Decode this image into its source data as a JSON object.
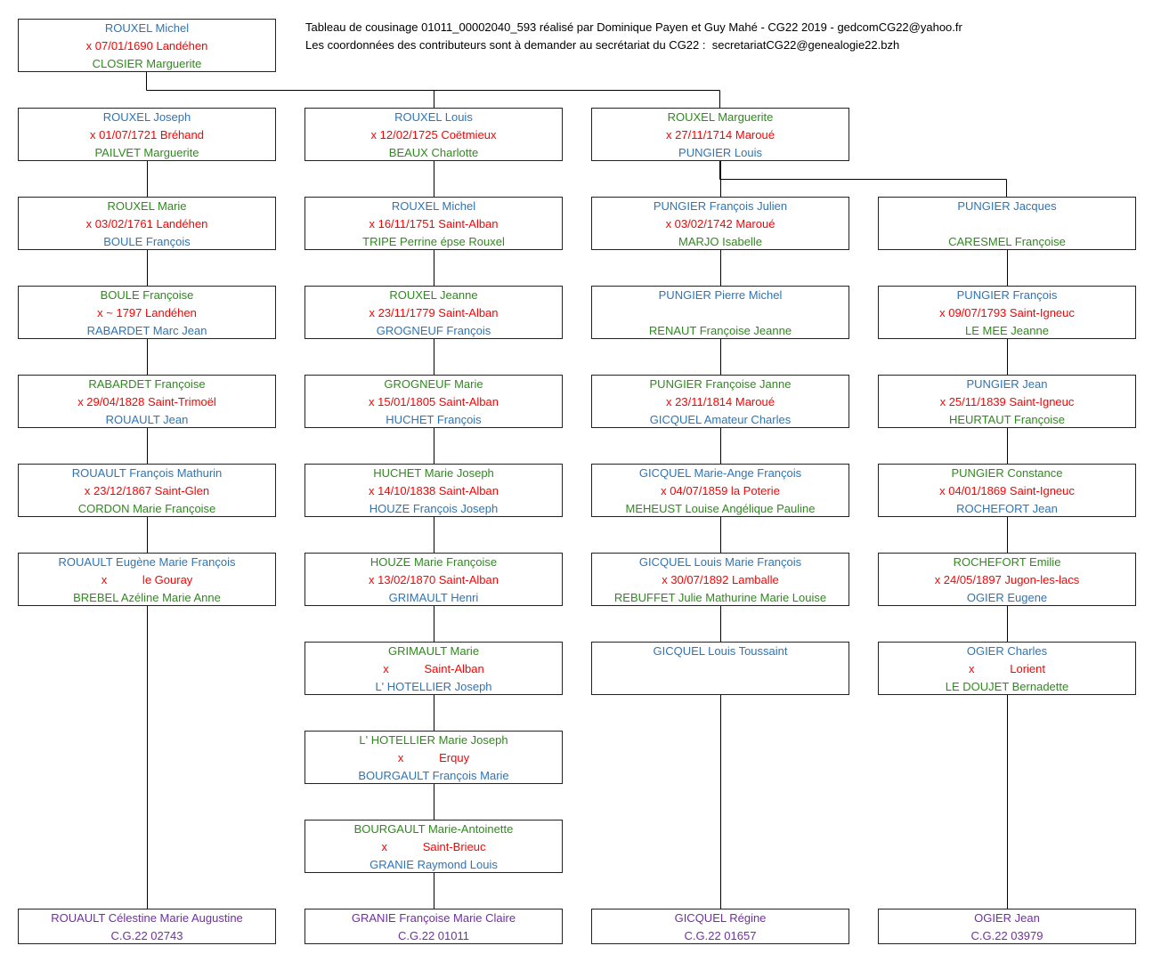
{
  "header": {
    "line1": "Tableau de cousinage 01011_00002040_593 réalisé par Dominique Payen et Guy Mahé - CG22 2019 - gedcomCG22@yahoo.fr",
    "line2": "Les coordonnées des contributeurs sont à demander au secrétariat du CG22 :  secretariatCG22@genealogie22.bzh"
  },
  "colors": {
    "blue": "#2e75b6",
    "red": "#ff0000",
    "green": "#2f8a1d",
    "purple": "#7030a0"
  },
  "ancestor": {
    "top": {
      "text": "ROUXEL Michel",
      "color": "blue"
    },
    "middle": {
      "text": "x 07/01/1690 Landéhen",
      "color": "red"
    },
    "bottom": {
      "text": "CLOSIER Marguerite",
      "color": "green"
    }
  },
  "columns": [
    {
      "boxes": [
        {
          "top": {
            "text": "ROUXEL Joseph",
            "color": "blue"
          },
          "middle": {
            "text": "x 01/07/1721 Bréhand",
            "color": "red"
          },
          "bottom": {
            "text": "PAILVET Marguerite",
            "color": "green"
          }
        },
        {
          "top": {
            "text": "ROUXEL Marie",
            "color": "green"
          },
          "middle": {
            "text": "x 03/02/1761 Landéhen",
            "color": "red"
          },
          "bottom": {
            "text": "BOULE François",
            "color": "blue"
          }
        },
        {
          "top": {
            "text": "BOULE Françoise",
            "color": "green"
          },
          "middle": {
            "text": "x ~ 1797 Landéhen",
            "color": "red"
          },
          "bottom": {
            "text": "RABARDET Marc Jean",
            "color": "blue"
          }
        },
        {
          "top": {
            "text": "RABARDET Françoise",
            "color": "green"
          },
          "middle": {
            "text": "x 29/04/1828 Saint-Trimoël",
            "color": "red"
          },
          "bottom": {
            "text": "ROUAULT Jean",
            "color": "blue"
          }
        },
        {
          "top": {
            "text": "ROUAULT François Mathurin",
            "color": "blue"
          },
          "middle": {
            "text": "x 23/12/1867 Saint-Glen",
            "color": "red"
          },
          "bottom": {
            "text": "CORDON Marie Françoise",
            "color": "green"
          }
        },
        {
          "top": {
            "text": "ROUAULT Eugène Marie François",
            "color": "blue"
          },
          "middle": {
            "text": "x           le Gouray",
            "color": "red"
          },
          "bottom": {
            "text": "BREBEL Azéline Marie Anne",
            "color": "green"
          }
        }
      ],
      "final": {
        "name": "ROUAULT Célestine Marie Augustine",
        "code": "C.G.22 02743"
      }
    },
    {
      "boxes": [
        {
          "top": {
            "text": "ROUXEL Louis",
            "color": "blue"
          },
          "middle": {
            "text": "x 12/02/1725 Coëtmieux",
            "color": "red"
          },
          "bottom": {
            "text": "BEAUX Charlotte",
            "color": "green"
          }
        },
        {
          "top": {
            "text": "ROUXEL Michel",
            "color": "blue"
          },
          "middle": {
            "text": "x 16/11/1751 Saint-Alban",
            "color": "red"
          },
          "bottom": {
            "text": "TRIPE Perrine épse Rouxel",
            "color": "green"
          }
        },
        {
          "top": {
            "text": "ROUXEL Jeanne",
            "color": "green"
          },
          "middle": {
            "text": "x 23/11/1779 Saint-Alban",
            "color": "red"
          },
          "bottom": {
            "text": "GROGNEUF François",
            "color": "blue"
          }
        },
        {
          "top": {
            "text": "GROGNEUF Marie",
            "color": "green"
          },
          "middle": {
            "text": "x 15/01/1805 Saint-Alban",
            "color": "red"
          },
          "bottom": {
            "text": "HUCHET François",
            "color": "blue"
          }
        },
        {
          "top": {
            "text": "HUCHET Marie Joseph",
            "color": "green"
          },
          "middle": {
            "text": "x 14/10/1838 Saint-Alban",
            "color": "red"
          },
          "bottom": {
            "text": "HOUZE François Joseph",
            "color": "blue"
          }
        },
        {
          "top": {
            "text": "HOUZE Marie Françoise",
            "color": "green"
          },
          "middle": {
            "text": "x 13/02/1870 Saint-Alban",
            "color": "red"
          },
          "bottom": {
            "text": "GRIMAULT Henri",
            "color": "blue"
          }
        },
        {
          "top": {
            "text": "GRIMAULT Marie",
            "color": "green"
          },
          "middle": {
            "text": "x           Saint-Alban",
            "color": "red"
          },
          "bottom": {
            "text": "L' HOTELLIER Joseph",
            "color": "blue"
          }
        },
        {
          "top": {
            "text": "L' HOTELLIER Marie Joseph",
            "color": "green"
          },
          "middle": {
            "text": "x           Erquy",
            "color": "red"
          },
          "bottom": {
            "text": "BOURGAULT François Marie",
            "color": "blue"
          }
        },
        {
          "top": {
            "text": "BOURGAULT Marie-Antoinette",
            "color": "green"
          },
          "middle": {
            "text": "x           Saint-Brieuc",
            "color": "red"
          },
          "bottom": {
            "text": "GRANIE Raymond Louis",
            "color": "blue"
          }
        }
      ],
      "final": {
        "name": "GRANIE Françoise Marie Claire",
        "code": "C.G.22 01011"
      }
    },
    {
      "boxes": [
        {
          "top": {
            "text": "ROUXEL Marguerite",
            "color": "green"
          },
          "middle": {
            "text": "x 27/11/1714 Maroué",
            "color": "red"
          },
          "bottom": {
            "text": "PUNGIER Louis",
            "color": "blue"
          }
        },
        {
          "top": {
            "text": "PUNGIER François Julien",
            "color": "blue"
          },
          "middle": {
            "text": "x 03/02/1742 Maroué",
            "color": "red"
          },
          "bottom": {
            "text": "MARJO Isabelle",
            "color": "green"
          }
        },
        {
          "top": {
            "text": "PUNGIER Pierre Michel",
            "color": "blue"
          },
          "bottom": {
            "text": "RENAUT Françoise Jeanne",
            "color": "green"
          }
        },
        {
          "top": {
            "text": "PUNGIER Françoise Janne",
            "color": "green"
          },
          "middle": {
            "text": "x 23/11/1814 Maroué",
            "color": "red"
          },
          "bottom": {
            "text": "GICQUEL Amateur Charles",
            "color": "blue"
          }
        },
        {
          "top": {
            "text": "GICQUEL Marie-Ange François",
            "color": "blue"
          },
          "middle": {
            "text": "x 04/07/1859 la Poterie",
            "color": "red"
          },
          "bottom": {
            "text": "MEHEUST Louise Angélique Pauline",
            "color": "green"
          }
        },
        {
          "top": {
            "text": "GICQUEL Louis Marie François",
            "color": "blue"
          },
          "middle": {
            "text": "x 30/07/1892 Lamballe",
            "color": "red"
          },
          "bottom": {
            "text": "REBUFFET Julie Mathurine Marie Louise",
            "color": "green"
          }
        },
        {
          "top": {
            "text": "GICQUEL Louis Toussaint",
            "color": "blue"
          }
        }
      ],
      "final": {
        "name": "GICQUEL Régine",
        "code": "C.G.22 01657"
      }
    },
    {
      "boxes": [
        {
          "top": {
            "text": "PUNGIER Jacques",
            "color": "blue"
          },
          "bottom": {
            "text": "CARESMEL Françoise",
            "color": "green"
          }
        },
        {
          "top": {
            "text": "PUNGIER François",
            "color": "blue"
          },
          "middle": {
            "text": "x 09/07/1793 Saint-Igneuc",
            "color": "red"
          },
          "bottom": {
            "text": "LE MEE Jeanne",
            "color": "green"
          }
        },
        {
          "top": {
            "text": "PUNGIER Jean",
            "color": "blue"
          },
          "middle": {
            "text": "x 25/11/1839 Saint-Igneuc",
            "color": "red"
          },
          "bottom": {
            "text": "HEURTAUT Françoise",
            "color": "green"
          }
        },
        {
          "top": {
            "text": "PUNGIER Constance",
            "color": "green"
          },
          "middle": {
            "text": "x 04/01/1869 Saint-Igneuc",
            "color": "red"
          },
          "bottom": {
            "text": "ROCHEFORT Jean",
            "color": "blue"
          }
        },
        {
          "top": {
            "text": "ROCHEFORT Emilie",
            "color": "green"
          },
          "middle": {
            "text": "x 24/05/1897 Jugon-les-lacs",
            "color": "red"
          },
          "bottom": {
            "text": "OGIER Eugene",
            "color": "blue"
          }
        },
        {
          "top": {
            "text": "OGIER Charles",
            "color": "blue"
          },
          "middle": {
            "text": "x           Lorient",
            "color": "red"
          },
          "bottom": {
            "text": "LE DOUJET Bernadette",
            "color": "green"
          }
        }
      ],
      "final": {
        "name": "OGIER Jean",
        "code": "C.G.22 03979"
      }
    }
  ]
}
